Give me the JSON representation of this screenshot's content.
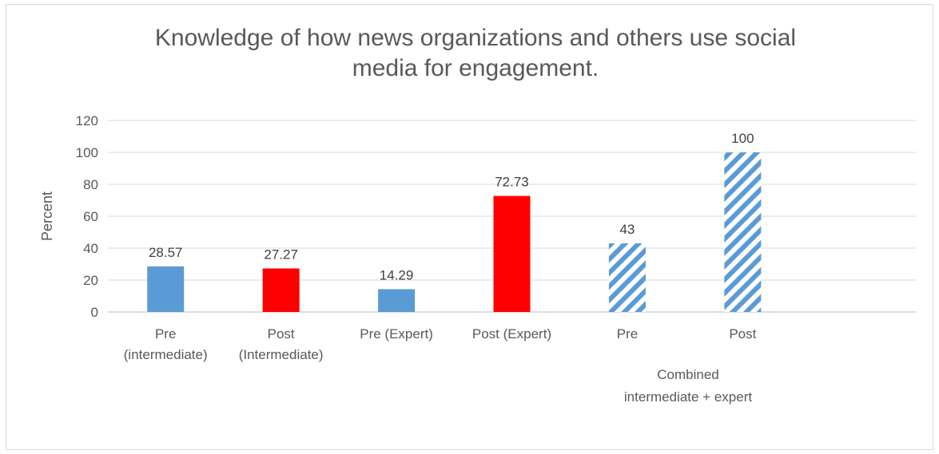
{
  "chart_data": {
    "type": "bar",
    "title_lines": [
      "Knowledge of how news organizations and others use social",
      "media for engagement."
    ],
    "ylabel": "Percent",
    "ylim": [
      0,
      120
    ],
    "yticks": [
      0,
      20,
      40,
      60,
      80,
      100,
      120
    ],
    "grid": true,
    "legend": "none",
    "categories": [
      {
        "lines": [
          "Pre",
          "(intermediate)"
        ],
        "value": 28.57,
        "label": "28.57",
        "color": "#5b9bd5",
        "pattern": "solid"
      },
      {
        "lines": [
          "Post",
          "(Intermediate)"
        ],
        "value": 27.27,
        "label": "27.27",
        "color": "#ff0000",
        "pattern": "solid"
      },
      {
        "lines": [
          "Pre (Expert)"
        ],
        "value": 14.29,
        "label": "14.29",
        "color": "#5b9bd5",
        "pattern": "solid"
      },
      {
        "lines": [
          "Post (Expert)"
        ],
        "value": 72.73,
        "label": "72.73",
        "color": "#ff0000",
        "pattern": "solid"
      },
      {
        "lines": [
          "Pre"
        ],
        "value": 43,
        "label": "43",
        "color": "#5b9bd5",
        "pattern": "diagonal-stripes"
      },
      {
        "lines": [
          "Post"
        ],
        "value": 100,
        "label": "100",
        "color": "#5b9bd5",
        "pattern": "diagonal-stripes"
      }
    ],
    "group_label_lines": [
      "Combined",
      "intermediate + expert"
    ]
  }
}
